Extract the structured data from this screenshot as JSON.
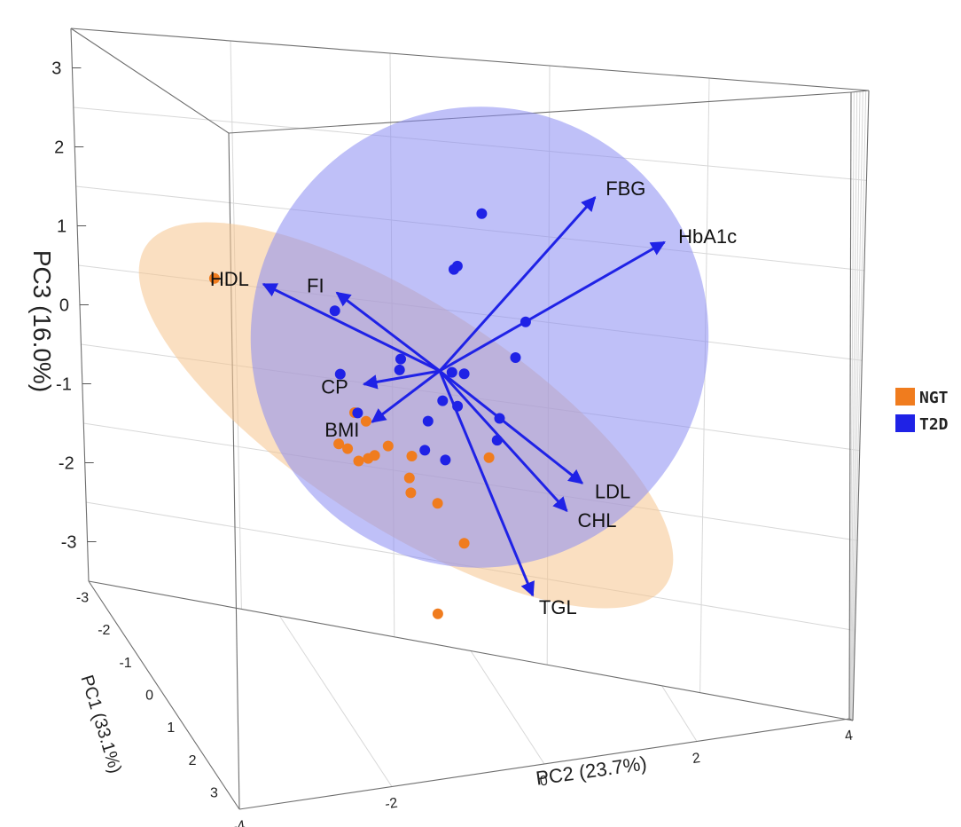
{
  "chart_data": {
    "type": "scatter",
    "subtype": "3d-pca-biplot",
    "title": "",
    "axes": {
      "pc1": {
        "label": "PC1 (33.1%)",
        "range": [
          -3,
          3
        ],
        "ticks": [
          "-3",
          "-2",
          "-1",
          "0",
          "1",
          "2",
          "3"
        ]
      },
      "pc2": {
        "label": "PC2 (23.7%)",
        "range": [
          -4,
          4
        ],
        "ticks": [
          "-4",
          "-2",
          "0",
          "2",
          "4"
        ]
      },
      "pc3": {
        "label": "PC3 (16.0%)",
        "range": [
          -3.5,
          3.5
        ],
        "ticks": [
          "3",
          "2",
          "1",
          "0",
          "-1",
          "-2",
          "-3"
        ]
      }
    },
    "legend": {
      "position": "right",
      "entries": [
        {
          "name": "NGT",
          "color": "#F07C1E"
        },
        {
          "name": "T2D",
          "color": "#1F22E6"
        }
      ]
    },
    "group_ellipses": [
      {
        "group": "NGT",
        "fill": "#F6C58E",
        "opacity": 0.55
      },
      {
        "group": "T2D",
        "fill": "#8A8CF2",
        "opacity": 0.55
      }
    ],
    "loadings": [
      {
        "label": "FBG",
        "pc2": 2.2,
        "pc3": 2.6
      },
      {
        "label": "HbA1c",
        "pc2": 3.4,
        "pc3": 2.1
      },
      {
        "label": "HDL",
        "pc2": -3.0,
        "pc3": 0.9
      },
      {
        "label": "FI",
        "pc2": -1.8,
        "pc3": 0.9
      },
      {
        "label": "CP",
        "pc2": -1.2,
        "pc3": -0.3
      },
      {
        "label": "BMI",
        "pc2": -1.0,
        "pc3": -0.8
      },
      {
        "label": "LDL",
        "pc2": 2.5,
        "pc3": -1.3
      },
      {
        "label": "CHL",
        "pc2": 2.3,
        "pc3": -1.7
      },
      {
        "label": "TGL",
        "pc2": 1.9,
        "pc3": -2.9
      }
    ],
    "series": [
      {
        "name": "NGT",
        "color": "#F07C1E",
        "points": [
          {
            "pc2": -3.8,
            "pc3": 0.9
          },
          {
            "pc2": -1.3,
            "pc3": -0.7
          },
          {
            "pc2": -1.1,
            "pc3": -0.8
          },
          {
            "pc2": -1.5,
            "pc3": -1.15
          },
          {
            "pc2": -1.35,
            "pc3": -1.2
          },
          {
            "pc2": -1.15,
            "pc3": -1.35
          },
          {
            "pc2": -1.0,
            "pc3": -1.3
          },
          {
            "pc2": -0.9,
            "pc3": -1.25
          },
          {
            "pc2": -0.7,
            "pc3": -1.1
          },
          {
            "pc2": -0.3,
            "pc3": -1.2
          },
          {
            "pc2": -0.3,
            "pc3": -1.5
          },
          {
            "pc2": -0.25,
            "pc3": -1.7
          },
          {
            "pc2": 0.2,
            "pc3": -1.8
          },
          {
            "pc2": 0.95,
            "pc3": -1.1
          },
          {
            "pc2": 0.7,
            "pc3": -2.3
          },
          {
            "pc2": 0.4,
            "pc3": -3.3
          }
        ]
      },
      {
        "name": "T2D",
        "color": "#1F22E6",
        "points": [
          {
            "pc2": 0.4,
            "pc3": 2.2
          },
          {
            "pc2": 0.05,
            "pc3": 1.4
          },
          {
            "pc2": 0.1,
            "pc3": 1.45
          },
          {
            "pc2": 1.3,
            "pc3": 0.8
          },
          {
            "pc2": 1.2,
            "pc3": 0.3
          },
          {
            "pc2": 0.2,
            "pc3": 0.0
          },
          {
            "pc2": 0.4,
            "pc3": 0.0
          },
          {
            "pc2": 0.35,
            "pc3": -0.45
          },
          {
            "pc2": 0.1,
            "pc3": -0.4
          },
          {
            "pc2": 1.05,
            "pc3": -0.55
          },
          {
            "pc2": 1.05,
            "pc3": -0.85
          },
          {
            "pc2": -0.65,
            "pc3": 0.1
          },
          {
            "pc2": -0.65,
            "pc3": -0.05
          },
          {
            "pc2": -1.6,
            "pc3": -0.2
          },
          {
            "pc2": -1.8,
            "pc3": 0.65
          },
          {
            "pc2": -1.25,
            "pc3": -0.7
          },
          {
            "pc2": -0.1,
            "pc3": -0.7
          },
          {
            "pc2": -0.1,
            "pc3": -1.1
          },
          {
            "pc2": 0.25,
            "pc3": -1.2
          }
        ]
      }
    ]
  }
}
